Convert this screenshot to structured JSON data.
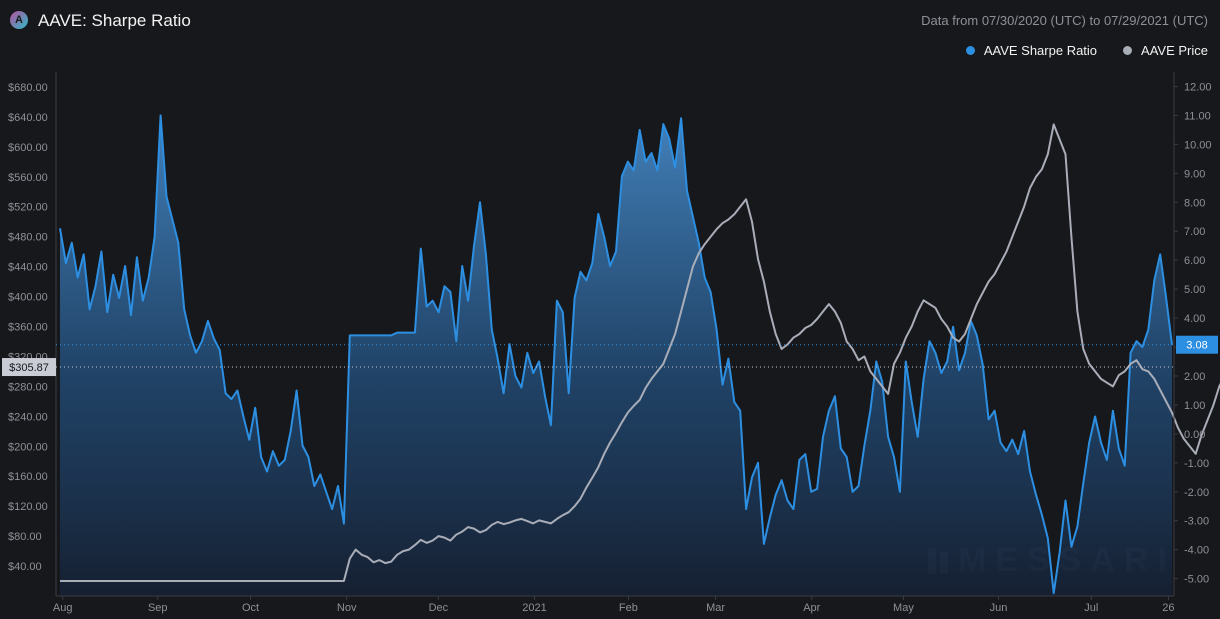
{
  "header": {
    "logo_letter": "A",
    "title": "AAVE: Sharpe Ratio",
    "date_range": "Data from 07/30/2020 (UTC) to 07/29/2021 (UTC)"
  },
  "legend": [
    {
      "label": "AAVE Sharpe Ratio",
      "color": "#2d8fe2"
    },
    {
      "label": "AAVE Price",
      "color": "#a9adb8"
    }
  ],
  "watermark": "MESSARI",
  "chart_data": {
    "type": "area",
    "x_tick_labels": [
      "Aug",
      "Sep",
      "Oct",
      "Nov",
      "Dec",
      "2021",
      "Feb",
      "Mar",
      "Apr",
      "May",
      "Jun",
      "Jul",
      "26"
    ],
    "left_axis_ticks": [
      "$680.00",
      "$640.00",
      "$600.00",
      "$560.00",
      "$520.00",
      "$480.00",
      "$440.00",
      "$400.00",
      "$360.00",
      "$320.00",
      "$280.00",
      "$240.00",
      "$200.00",
      "$160.00",
      "$120.00",
      "$80.00",
      "$40.00"
    ],
    "right_axis_ticks": [
      "12.00",
      "11.00",
      "10.00",
      "9.00",
      "8.00",
      "7.00",
      "6.00",
      "5.00",
      "4.00",
      "3.00",
      "2.00",
      "1.00",
      "0.00",
      "-1.00",
      "-2.00",
      "-3.00",
      "-4.00",
      "-5.00"
    ],
    "left_ylim": [
      0,
      700
    ],
    "right_ylim": [
      -5.6,
      12.5
    ],
    "grid": false,
    "legend_position": "top-right",
    "current_price_label": "$305.87",
    "current_price": 305.87,
    "current_sharpe_label": "3.08",
    "current_sharpe": 3.08,
    "series": [
      {
        "name": "AAVE Sharpe Ratio",
        "axis": "right",
        "color": "#2d8fe2",
        "values": [
          7.1,
          5.9,
          6.6,
          5.4,
          6.2,
          4.3,
          5.1,
          6.3,
          4.2,
          5.5,
          4.7,
          5.8,
          4.1,
          6.1,
          4.6,
          5.4,
          6.8,
          11.0,
          8.2,
          7.4,
          6.6,
          4.3,
          3.4,
          2.8,
          3.2,
          3.9,
          3.3,
          2.9,
          1.4,
          1.2,
          1.5,
          0.6,
          -0.2,
          0.9,
          -0.8,
          -1.3,
          -0.6,
          -1.1,
          -0.9,
          0.1,
          1.5,
          -0.4,
          -0.8,
          -1.8,
          -1.4,
          -2.0,
          -2.6,
          -1.8,
          -3.1,
          3.4,
          3.4,
          3.4,
          3.4,
          3.4,
          3.4,
          3.4,
          3.4,
          3.5,
          3.5,
          3.5,
          3.5,
          6.4,
          4.4,
          4.6,
          4.2,
          5.1,
          4.9,
          3.2,
          5.8,
          4.6,
          6.5,
          8.0,
          6.2,
          3.6,
          2.6,
          1.4,
          3.1,
          2.0,
          1.6,
          2.8,
          2.1,
          2.5,
          1.3,
          0.3,
          4.6,
          4.2,
          1.4,
          4.7,
          5.6,
          5.3,
          5.9,
          7.6,
          6.8,
          5.8,
          6.3,
          8.9,
          9.4,
          9.1,
          10.5,
          9.4,
          9.7,
          9.1,
          10.7,
          10.2,
          9.2,
          10.9,
          8.4,
          7.5,
          6.6,
          5.4,
          4.9,
          3.6,
          1.7,
          2.6,
          1.1,
          0.8,
          -2.6,
          -1.5,
          -1.0,
          -3.8,
          -2.9,
          -2.1,
          -1.6,
          -2.3,
          -2.6,
          -0.9,
          -0.7,
          -2.0,
          -1.9,
          -0.1,
          0.8,
          1.3,
          -0.5,
          -0.8,
          -2.0,
          -1.8,
          -0.4,
          0.8,
          2.5,
          1.8,
          -0.1,
          -0.8,
          -2.0,
          2.5,
          1.1,
          -0.1,
          1.9,
          3.2,
          2.8,
          2.1,
          2.5,
          3.7,
          2.2,
          2.8,
          3.9,
          3.4,
          2.4,
          0.5,
          0.8,
          -0.3,
          -0.6,
          -0.2,
          -0.7,
          0.1,
          -1.3,
          -2.1,
          -2.8,
          -3.6,
          -5.5,
          -4.1,
          -2.3,
          -3.9,
          -3.2,
          -1.7,
          -0.3,
          0.6,
          -0.3,
          -0.9,
          0.8,
          -0.5,
          -1.1,
          2.8,
          3.2,
          3.0,
          3.6,
          5.3,
          6.2,
          4.7,
          3.08
        ],
        "fill": true
      },
      {
        "name": "AAVE Price",
        "axis": "left",
        "color": "#a9adb8",
        "values": [
          20,
          20,
          20,
          20,
          20,
          20,
          20,
          20,
          20,
          20,
          20,
          20,
          20,
          20,
          20,
          20,
          20,
          20,
          20,
          20,
          20,
          20,
          20,
          20,
          20,
          20,
          20,
          20,
          20,
          20,
          20,
          20,
          20,
          20,
          20,
          20,
          20,
          20,
          20,
          20,
          20,
          20,
          20,
          20,
          20,
          20,
          20,
          20,
          20,
          50,
          62,
          55,
          52,
          45,
          48,
          44,
          46,
          55,
          60,
          62,
          68,
          75,
          71,
          74,
          80,
          78,
          74,
          82,
          86,
          92,
          90,
          85,
          88,
          95,
          99,
          96,
          98,
          101,
          103,
          100,
          97,
          101,
          99,
          97,
          103,
          108,
          112,
          120,
          130,
          145,
          158,
          172,
          190,
          205,
          218,
          232,
          245,
          254,
          262,
          278,
          290,
          300,
          310,
          330,
          350,
          380,
          410,
          440,
          458,
          470,
          480,
          490,
          498,
          503,
          510,
          520,
          530,
          500,
          450,
          420,
          380,
          350,
          330,
          336,
          345,
          350,
          358,
          362,
          370,
          380,
          390,
          380,
          365,
          340,
          330,
          315,
          320,
          300,
          290,
          280,
          270,
          310,
          325,
          345,
          360,
          380,
          395,
          390,
          385,
          370,
          360,
          345,
          340,
          350,
          370,
          390,
          405,
          420,
          430,
          445,
          460,
          480,
          500,
          520,
          545,
          560,
          570,
          590,
          630,
          610,
          590,
          480,
          380,
          330,
          310,
          300,
          290,
          285,
          280,
          295,
          300,
          310,
          315,
          303,
          300,
          290,
          275,
          260,
          245,
          225,
          210,
          200,
          190,
          215,
          235,
          255,
          280,
          295,
          300,
          298,
          296,
          290,
          280,
          260,
          245,
          235,
          255,
          275,
          300,
          305.87
        ],
        "fill": false
      }
    ]
  }
}
